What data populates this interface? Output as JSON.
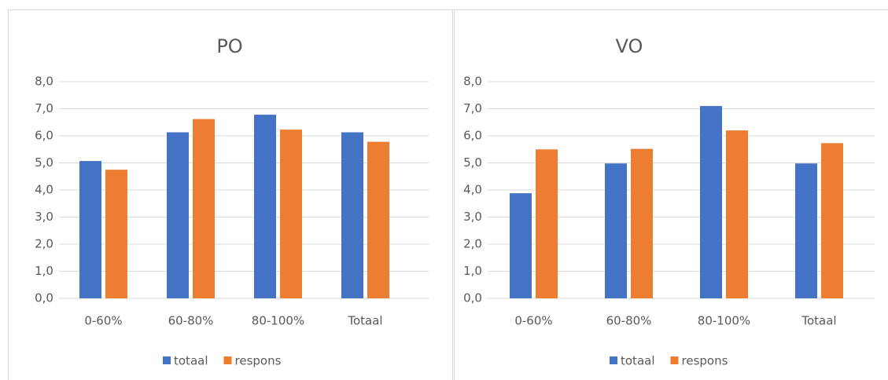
{
  "chart_data": [
    {
      "type": "bar",
      "title": "PO",
      "categories": [
        "0-60%",
        "60-80%",
        "80-100%",
        "Totaal"
      ],
      "series": [
        {
          "name": "totaal",
          "color": "#4472c4",
          "values": [
            5.07,
            6.13,
            6.78,
            6.13
          ]
        },
        {
          "name": "respons",
          "color": "#ed7d31",
          "values": [
            4.75,
            6.62,
            6.23,
            5.78
          ]
        }
      ],
      "ylim": [
        0,
        8
      ],
      "yticks": [
        {
          "value": 0,
          "label": "0,0"
        },
        {
          "value": 1,
          "label": "1,0"
        },
        {
          "value": 2,
          "label": "2,0"
        },
        {
          "value": 3,
          "label": "3,0"
        },
        {
          "value": 4,
          "label": "4,0"
        },
        {
          "value": 5,
          "label": "5,0"
        },
        {
          "value": 6,
          "label": "6,0"
        },
        {
          "value": 7,
          "label": "7,0"
        },
        {
          "value": 8,
          "label": "8,0"
        }
      ],
      "grid": true,
      "legend": "bottom"
    },
    {
      "type": "bar",
      "title": "VO",
      "categories": [
        "0-60%",
        "60-80%",
        "80-100%",
        "Totaal"
      ],
      "series": [
        {
          "name": "totaal",
          "color": "#4472c4",
          "values": [
            3.88,
            4.98,
            7.1,
            4.98
          ]
        },
        {
          "name": "respons",
          "color": "#ed7d31",
          "values": [
            5.5,
            5.52,
            6.2,
            5.73
          ]
        }
      ],
      "ylim": [
        0,
        8
      ],
      "yticks": [
        {
          "value": 0,
          "label": "0,0"
        },
        {
          "value": 1,
          "label": "1,0"
        },
        {
          "value": 2,
          "label": "2,0"
        },
        {
          "value": 3,
          "label": "3,0"
        },
        {
          "value": 4,
          "label": "4,0"
        },
        {
          "value": 5,
          "label": "5,0"
        },
        {
          "value": 6,
          "label": "6,0"
        },
        {
          "value": 7,
          "label": "7,0"
        },
        {
          "value": 8,
          "label": "8,0"
        }
      ],
      "grid": true,
      "legend": "bottom"
    }
  ]
}
